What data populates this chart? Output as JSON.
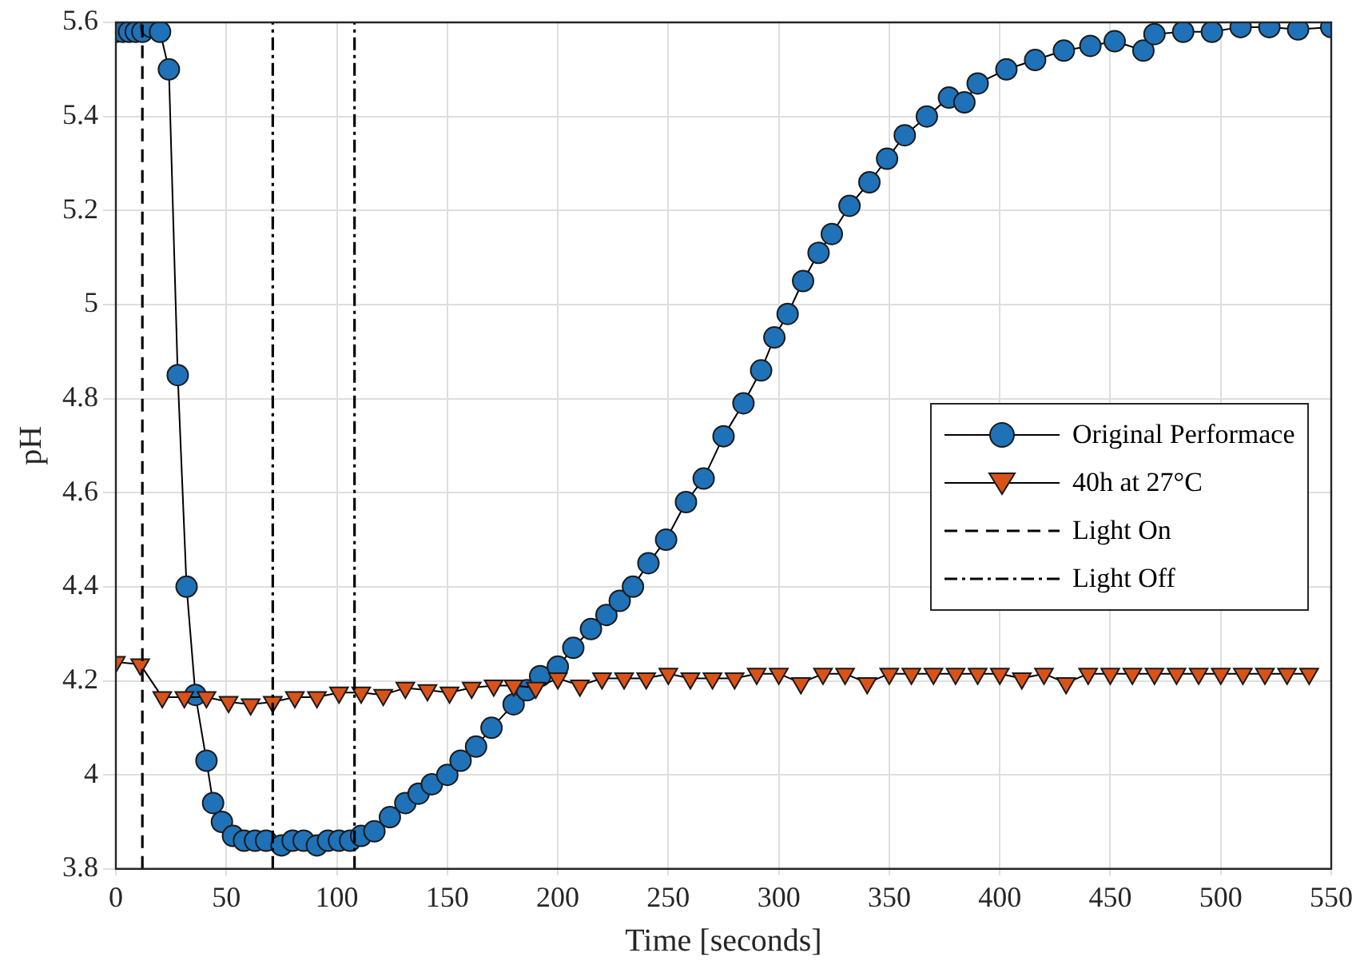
{
  "chart_data": {
    "type": "line",
    "xlabel": "Time [seconds]",
    "ylabel": "pH",
    "xlim": [
      0,
      550
    ],
    "xticks": [
      0,
      50,
      100,
      150,
      200,
      250,
      300,
      350,
      400,
      450,
      500,
      550
    ],
    "ylim": [
      3.8,
      5.6
    ],
    "yticks": [
      3.8,
      4,
      4.2,
      4.4,
      4.6,
      4.8,
      5,
      5.2,
      5.4,
      5.6
    ],
    "grid": true,
    "legend": "right",
    "series": [
      {
        "name": "Original Performace",
        "color": "#1f72b8",
        "marker": "circle",
        "x": [
          0,
          3,
          6,
          9,
          12,
          16,
          20,
          24,
          28,
          32,
          36,
          41,
          44,
          48,
          53,
          58,
          63,
          68,
          75,
          80,
          85,
          91,
          96,
          101,
          106,
          111,
          117,
          124,
          131,
          137,
          143,
          150,
          156,
          163,
          170,
          180,
          186,
          192,
          200,
          207,
          215,
          222,
          228,
          234,
          241,
          249,
          258,
          266,
          275,
          284,
          292,
          298,
          304,
          311,
          318,
          324,
          332,
          341,
          349,
          357,
          367,
          377,
          384,
          390,
          403,
          416,
          429,
          441,
          452,
          465,
          470,
          483,
          496,
          509,
          522,
          535,
          550
        ],
        "values": [
          5.58,
          5.58,
          5.58,
          5.58,
          5.58,
          5.59,
          5.58,
          5.5,
          4.85,
          4.4,
          4.17,
          4.03,
          3.94,
          3.9,
          3.87,
          3.86,
          3.86,
          3.86,
          3.85,
          3.86,
          3.86,
          3.85,
          3.86,
          3.86,
          3.86,
          3.87,
          3.88,
          3.91,
          3.94,
          3.96,
          3.98,
          4.0,
          4.03,
          4.06,
          4.1,
          4.15,
          4.18,
          4.21,
          4.23,
          4.27,
          4.31,
          4.34,
          4.37,
          4.4,
          4.45,
          4.5,
          4.58,
          4.63,
          4.72,
          4.79,
          4.86,
          4.93,
          4.98,
          5.05,
          5.11,
          5.15,
          5.21,
          5.26,
          5.31,
          5.36,
          5.4,
          5.44,
          5.43,
          5.47,
          5.5,
          5.52,
          5.54,
          5.55,
          5.56,
          5.54,
          5.575,
          5.58,
          5.58,
          5.59,
          5.59,
          5.585,
          5.59
        ]
      },
      {
        "name": "40h at 27°C",
        "color": "#d95319",
        "marker": "triangle",
        "x": [
          0,
          11,
          21,
          31,
          41,
          51,
          61,
          71,
          81,
          91,
          101,
          111,
          121,
          131,
          141,
          151,
          161,
          171,
          180,
          190,
          200,
          210,
          220,
          230,
          240,
          250,
          260,
          270,
          280,
          290,
          300,
          310,
          320,
          330,
          340,
          350,
          360,
          370,
          380,
          390,
          400,
          410,
          420,
          430,
          440,
          450,
          460,
          470,
          480,
          490,
          500,
          510,
          520,
          530,
          540
        ],
        "values": [
          4.24,
          4.235,
          4.165,
          4.165,
          4.165,
          4.155,
          4.15,
          4.155,
          4.165,
          4.165,
          4.175,
          4.175,
          4.17,
          4.185,
          4.18,
          4.175,
          4.185,
          4.19,
          4.19,
          4.185,
          4.205,
          4.19,
          4.205,
          4.205,
          4.205,
          4.215,
          4.205,
          4.205,
          4.205,
          4.215,
          4.215,
          4.195,
          4.215,
          4.215,
          4.195,
          4.215,
          4.215,
          4.215,
          4.215,
          4.215,
          4.215,
          4.205,
          4.215,
          4.195,
          4.215,
          4.215,
          4.215,
          4.215,
          4.215,
          4.215,
          4.215,
          4.215,
          4.215,
          4.215,
          4.215
        ]
      },
      {
        "name": "Light On",
        "type": "line",
        "color": "#000000",
        "marker": "none",
        "line_style": "dashed",
        "x": [
          12,
          12
        ],
        "values": [
          3.8,
          5.6
        ]
      },
      {
        "name": "Light Off",
        "type": "line",
        "color": "#000000",
        "marker": "none",
        "line_style": "dashdot",
        "x": [
          71,
          71,
          null,
          108,
          108
        ],
        "values": [
          3.8,
          5.6,
          null,
          3.8,
          5.6
        ]
      }
    ]
  }
}
